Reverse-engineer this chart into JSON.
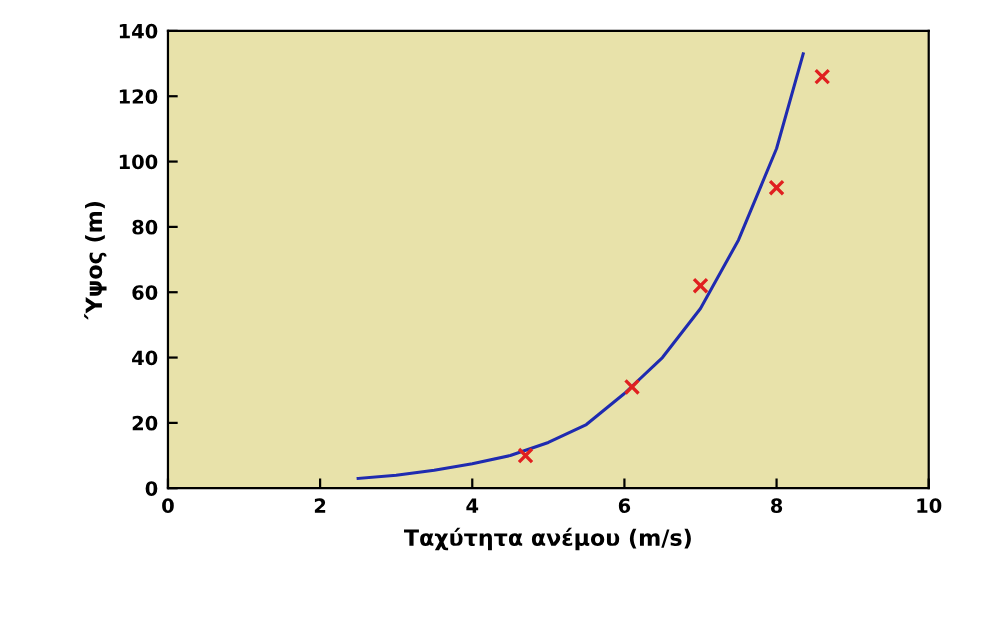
{
  "chart_data": {
    "type": "scatter",
    "xlabel": "Ταχύτητα ανέμου (m/s)",
    "ylabel": "Ύψος (m)",
    "xlim": [
      0,
      10
    ],
    "xticks": [
      0,
      2,
      4,
      6,
      8,
      10
    ],
    "ylim": [
      0,
      140
    ],
    "yticks": [
      0,
      20,
      40,
      60,
      80,
      100,
      120,
      140
    ],
    "grid": false,
    "series": [
      {
        "type": "line",
        "color": "#1f2bb0",
        "marker": "none",
        "line_style": "solid",
        "x": [
          2.5,
          3,
          3.5,
          4,
          4.5,
          5,
          5.5,
          6,
          6.5,
          7,
          7.5,
          8,
          8.35
        ],
        "values": [
          3,
          4,
          5.5,
          7.5,
          10,
          14,
          19.5,
          29,
          40,
          55,
          76,
          104,
          133
        ]
      },
      {
        "color": "#e02020",
        "marker": "cross",
        "x": [
          4.7,
          6.1,
          7.0,
          8.0,
          8.6
        ],
        "values": [
          10,
          31,
          62,
          92,
          126
        ]
      }
    ]
  }
}
